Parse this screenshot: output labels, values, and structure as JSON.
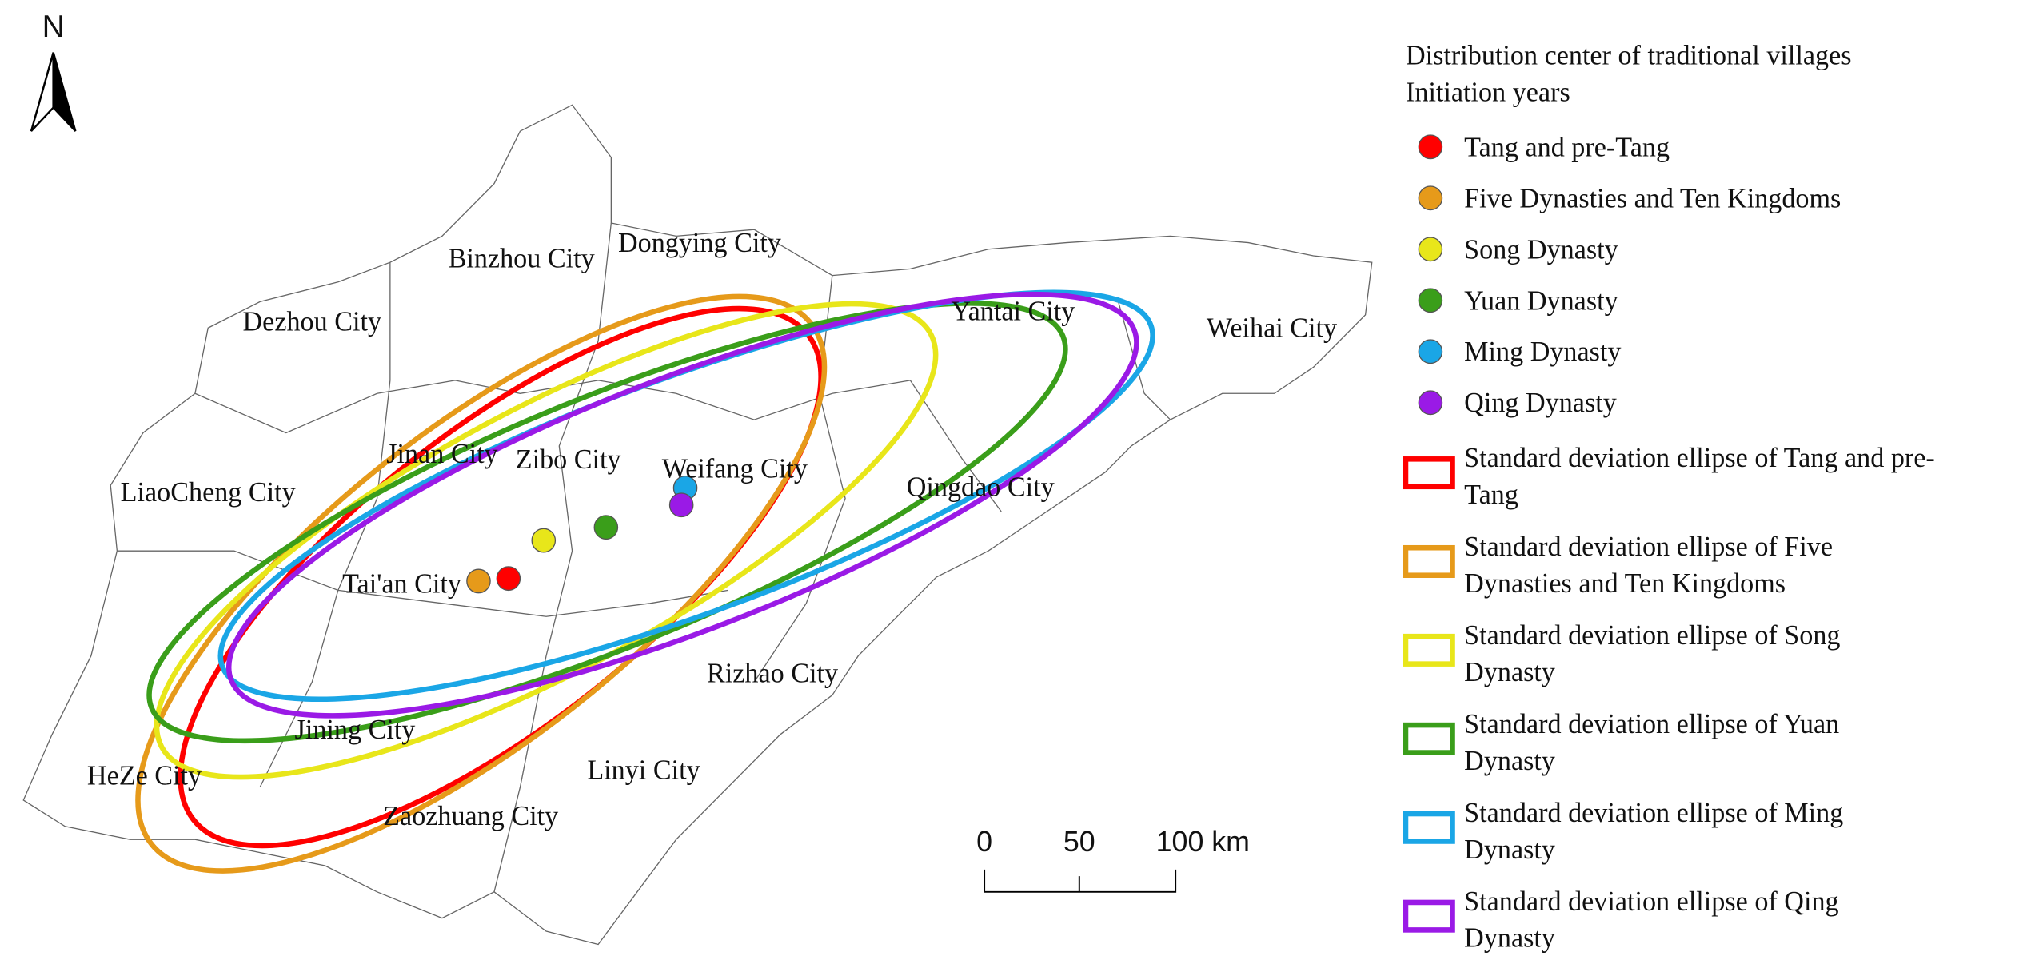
{
  "north": "N",
  "legend": {
    "title": [
      "Distribution center of traditional villages",
      "Initiation years"
    ],
    "points": [
      {
        "name": "Tang and pre-Tang",
        "color": "#ff0000"
      },
      {
        "name": "Five Dynasties and Ten Kingdoms",
        "color": "#e69a1a"
      },
      {
        "name": "Song Dynasty",
        "color": "#e8e61a"
      },
      {
        "name": "Yuan Dynasty",
        "color": "#3a9e1a"
      },
      {
        "name": "Ming Dynasty",
        "color": "#1aa6e6"
      },
      {
        "name": "Qing Dynasty",
        "color": "#9a1ae6"
      }
    ],
    "ellipses": [
      {
        "lines": [
          "Standard deviation ellipse of Tang and pre-",
          "Tang"
        ],
        "color": "#ff0000"
      },
      {
        "lines": [
          "Standard deviation ellipse of Five",
          "Dynasties and Ten Kingdoms"
        ],
        "color": "#e69a1a"
      },
      {
        "lines": [
          "Standard deviation ellipse of Song",
          "Dynasty"
        ],
        "color": "#e8e61a"
      },
      {
        "lines": [
          "Standard deviation ellipse of Yuan",
          "Dynasty"
        ],
        "color": "#3a9e1a"
      },
      {
        "lines": [
          "Standard deviation ellipse of Ming",
          "Dynasty"
        ],
        "color": "#1aa6e6"
      },
      {
        "lines": [
          "Standard deviation ellipse of Qing",
          "Dynasty"
        ],
        "color": "#9a1ae6"
      }
    ]
  },
  "cities": [
    "Dongying City",
    "Binzhou City",
    "Dezhou City",
    "Yantai City",
    "Weihai City",
    "Jinan City",
    "Zibo City",
    "Weifang City",
    "LiaoCheng City",
    "Qingdao City",
    "Tai'an City",
    "Rizhao City",
    "Jining City",
    "HeZe City",
    "Linyi City",
    "Zaozhuang City"
  ],
  "scale_bar": {
    "labels": [
      "0",
      "50",
      "100 km"
    ]
  }
}
